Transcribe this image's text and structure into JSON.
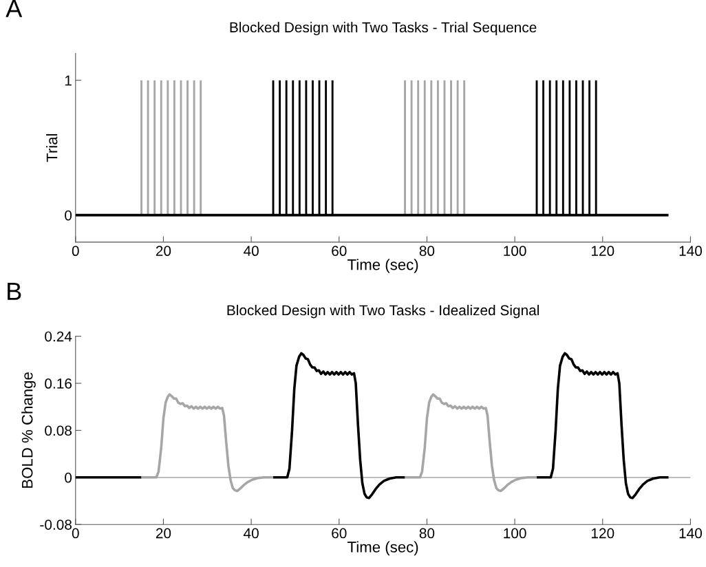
{
  "chart_data": [
    {
      "type": "bar",
      "title": "Blocked Design with Two Tasks - Trial Sequence",
      "xlabel": "Time (sec)",
      "ylabel": "Trial",
      "annotations": [
        "A"
      ],
      "xlim": [
        0,
        140
      ],
      "xticks": [
        0,
        20,
        40,
        60,
        80,
        100,
        120,
        140
      ],
      "ylim": [
        -0.2,
        1.2
      ],
      "yticks": [
        0,
        1
      ],
      "grid": false,
      "legend": false,
      "series": [
        {
          "type": "bar",
          "color": "#a6a6a6",
          "x": [
            15,
            16.5,
            18,
            19.5,
            21,
            22.5,
            24,
            25.5,
            27,
            28.5,
            75,
            76.5,
            78,
            79.5,
            81,
            82.5,
            84,
            85.5,
            87,
            88.5
          ],
          "values": [
            1,
            1,
            1,
            1,
            1,
            1,
            1,
            1,
            1,
            1,
            1,
            1,
            1,
            1,
            1,
            1,
            1,
            1,
            1,
            1
          ]
        },
        {
          "type": "bar",
          "color": "#000000",
          "x": [
            45,
            46.5,
            48,
            49.5,
            51,
            52.5,
            54,
            55.5,
            57,
            58.5,
            105,
            106.5,
            108,
            109.5,
            111,
            112.5,
            114,
            115.5,
            117,
            118.5
          ],
          "values": [
            1,
            1,
            1,
            1,
            1,
            1,
            1,
            1,
            1,
            1,
            1,
            1,
            1,
            1,
            1,
            1,
            1,
            1,
            1,
            1
          ]
        },
        {
          "type": "line",
          "color": "#000000",
          "x": [
            0,
            135
          ],
          "values": [
            0,
            0
          ]
        }
      ]
    },
    {
      "type": "line",
      "title": "Blocked Design with Two Tasks - Idealized Signal",
      "xlabel": "Time (sec)",
      "ylabel": "BOLD % Change",
      "annotations": [
        "B"
      ],
      "xlim": [
        0,
        140
      ],
      "xticks": [
        0,
        20,
        40,
        60,
        80,
        100,
        120,
        140
      ],
      "ylim": [
        -0.08,
        0.24
      ],
      "yticks": [
        -0.08,
        0,
        0.08,
        0.16,
        0.24
      ],
      "grid": false,
      "legend": false,
      "marker": "none",
      "line_style": "solid",
      "ref_lines": [
        {
          "axis": "y",
          "value": 0,
          "color": "#b3b3b3"
        }
      ],
      "series": [
        {
          "color": "#000000",
          "x": [
            0,
            15
          ],
          "values": [
            0,
            0
          ]
        },
        {
          "color": "#a6a6a6",
          "x": [
            15,
            18.4,
            18.9,
            19.5,
            20.0,
            20.5,
            21.0,
            21.4,
            21.9,
            22.4,
            22.9,
            23.4,
            23.9,
            24.4,
            24.9,
            25.4,
            25.9,
            26.4,
            26.9,
            27.4,
            27.9,
            28.4,
            28.9,
            29.4,
            29.9,
            30.4,
            30.9,
            31.4,
            31.9,
            32.4,
            32.9,
            33.4,
            33.8,
            34.3,
            34.8,
            35.3,
            35.8,
            36.3,
            36.8,
            37.5,
            38.3,
            39.2,
            40.2,
            41.5,
            43,
            45
          ],
          "values": [
            0,
            0,
            0.01,
            0.05,
            0.1,
            0.127,
            0.137,
            0.141,
            0.138,
            0.134,
            0.134,
            0.127,
            0.125,
            0.126,
            0.121,
            0.122,
            0.118,
            0.121,
            0.117,
            0.12,
            0.117,
            0.12,
            0.117,
            0.12,
            0.117,
            0.12,
            0.117,
            0.12,
            0.117,
            0.12,
            0.117,
            0.118,
            0.105,
            0.06,
            0.02,
            -0.005,
            -0.018,
            -0.022,
            -0.023,
            -0.019,
            -0.013,
            -0.008,
            -0.004,
            -0.001,
            0,
            0
          ]
        },
        {
          "color": "#000000",
          "x": [
            45,
            48.2,
            48.7,
            49.3,
            49.8,
            50.3,
            50.9,
            51.4,
            51.9,
            52.4,
            52.9,
            53.4,
            53.9,
            54.4,
            54.9,
            55.4,
            55.9,
            56.4,
            56.9,
            57.4,
            57.9,
            58.4,
            58.9,
            59.4,
            59.9,
            60.4,
            60.9,
            61.4,
            61.9,
            62.4,
            62.9,
            63.4,
            63.8,
            64.3,
            64.8,
            65.3,
            65.8,
            66.3,
            66.8,
            67.5,
            68.3,
            69.2,
            70.2,
            71.5,
            73,
            75
          ],
          "values": [
            0,
            0,
            0.015,
            0.08,
            0.15,
            0.19,
            0.205,
            0.211,
            0.208,
            0.202,
            0.201,
            0.192,
            0.187,
            0.187,
            0.181,
            0.182,
            0.176,
            0.18,
            0.175,
            0.179,
            0.175,
            0.179,
            0.175,
            0.179,
            0.175,
            0.179,
            0.175,
            0.179,
            0.175,
            0.179,
            0.175,
            0.177,
            0.16,
            0.09,
            0.03,
            -0.01,
            -0.028,
            -0.034,
            -0.035,
            -0.029,
            -0.02,
            -0.012,
            -0.006,
            -0.002,
            0,
            0
          ]
        },
        {
          "color": "#a6a6a6",
          "x": [
            75,
            78.4,
            78.9,
            79.5,
            80.0,
            80.5,
            81.0,
            81.4,
            81.9,
            82.4,
            82.9,
            83.4,
            83.9,
            84.4,
            84.9,
            85.4,
            85.9,
            86.4,
            86.9,
            87.4,
            87.9,
            88.4,
            88.9,
            89.4,
            89.9,
            90.4,
            90.9,
            91.4,
            91.9,
            92.4,
            92.9,
            93.4,
            93.8,
            94.3,
            94.8,
            95.3,
            95.8,
            96.3,
            96.8,
            97.5,
            98.3,
            99.2,
            100.2,
            101.5,
            103,
            105
          ],
          "values": [
            0,
            0,
            0.01,
            0.05,
            0.1,
            0.127,
            0.137,
            0.141,
            0.138,
            0.134,
            0.134,
            0.127,
            0.125,
            0.126,
            0.121,
            0.122,
            0.118,
            0.121,
            0.117,
            0.12,
            0.117,
            0.12,
            0.117,
            0.12,
            0.117,
            0.12,
            0.117,
            0.12,
            0.117,
            0.12,
            0.117,
            0.118,
            0.105,
            0.06,
            0.02,
            -0.005,
            -0.018,
            -0.022,
            -0.023,
            -0.019,
            -0.013,
            -0.008,
            -0.004,
            -0.001,
            0,
            0
          ]
        },
        {
          "color": "#000000",
          "x": [
            105,
            108.2,
            108.7,
            109.3,
            109.8,
            110.3,
            110.9,
            111.4,
            111.9,
            112.4,
            112.9,
            113.4,
            113.9,
            114.4,
            114.9,
            115.4,
            115.9,
            116.4,
            116.9,
            117.4,
            117.9,
            118.4,
            118.9,
            119.4,
            119.9,
            120.4,
            120.9,
            121.4,
            121.9,
            122.4,
            122.9,
            123.4,
            123.8,
            124.3,
            124.8,
            125.3,
            125.8,
            126.3,
            126.8,
            127.5,
            128.3,
            129.2,
            130.2,
            131.5,
            133,
            135
          ],
          "values": [
            0,
            0,
            0.015,
            0.08,
            0.15,
            0.19,
            0.205,
            0.211,
            0.208,
            0.202,
            0.201,
            0.192,
            0.187,
            0.187,
            0.181,
            0.182,
            0.176,
            0.18,
            0.175,
            0.179,
            0.175,
            0.179,
            0.175,
            0.179,
            0.175,
            0.179,
            0.175,
            0.179,
            0.175,
            0.179,
            0.175,
            0.177,
            0.16,
            0.09,
            0.03,
            -0.01,
            -0.028,
            -0.034,
            -0.035,
            -0.029,
            -0.02,
            -0.012,
            -0.006,
            -0.002,
            0,
            0
          ]
        }
      ]
    }
  ]
}
